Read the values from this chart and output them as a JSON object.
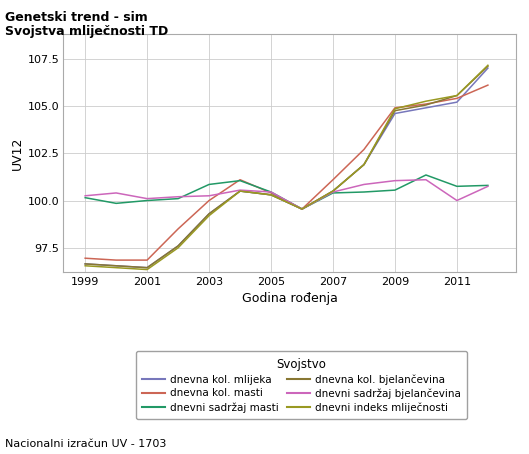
{
  "title_line1": "Genetski trend - sim",
  "title_line2": "Svojstva mliječnosti TD",
  "xlabel": "Godina rođenja",
  "ylabel": "UV12",
  "legend_title": "Svojstvo",
  "footnote": "Nacionalni izračun UV - 1703",
  "xlim": [
    1998.3,
    2012.9
  ],
  "ylim": [
    96.2,
    108.8
  ],
  "xticks": [
    1999,
    2001,
    2003,
    2005,
    2007,
    2009,
    2011
  ],
  "yticks": [
    97.5,
    100.0,
    102.5,
    105.0,
    107.5
  ],
  "years": [
    1999,
    2000,
    2001,
    2002,
    2003,
    2004,
    2005,
    2006,
    2007,
    2008,
    2009,
    2010,
    2011,
    2012
  ],
  "series": [
    {
      "label": "dnevna kol. mlijeka",
      "color": "#7777bb",
      "values": [
        96.65,
        96.55,
        96.45,
        97.6,
        99.3,
        100.5,
        100.3,
        99.55,
        100.5,
        101.9,
        104.6,
        104.9,
        105.2,
        107.0
      ]
    },
    {
      "label": "dnevna kol. masti",
      "color": "#cc6655",
      "values": [
        96.95,
        96.85,
        96.85,
        98.5,
        100.0,
        101.1,
        100.4,
        99.55,
        101.1,
        102.7,
        104.9,
        105.1,
        105.4,
        106.1
      ]
    },
    {
      "label": "dnevni sadržaj masti",
      "color": "#229966",
      "values": [
        100.15,
        99.85,
        100.0,
        100.1,
        100.85,
        101.05,
        100.45,
        99.55,
        100.4,
        100.45,
        100.55,
        101.35,
        100.75,
        100.8
      ]
    },
    {
      "label": "dnevna kol. bjelančevina",
      "color": "#887733",
      "values": [
        96.65,
        96.55,
        96.45,
        97.6,
        99.3,
        100.5,
        100.3,
        99.55,
        100.5,
        101.9,
        104.75,
        105.05,
        105.55,
        107.1
      ]
    },
    {
      "label": "dnevni sadržaj bjelančevina",
      "color": "#cc66bb",
      "values": [
        100.25,
        100.4,
        100.1,
        100.2,
        100.25,
        100.55,
        100.45,
        99.55,
        100.45,
        100.85,
        101.05,
        101.1,
        100.0,
        100.75
      ]
    },
    {
      "label": "dnevni indeks mliječnosti",
      "color": "#999922",
      "values": [
        96.55,
        96.45,
        96.35,
        97.5,
        99.2,
        100.5,
        100.3,
        99.55,
        100.5,
        101.9,
        104.85,
        105.25,
        105.55,
        107.15
      ]
    }
  ],
  "legend_order": [
    0,
    1,
    2,
    3,
    4,
    5
  ],
  "bg_color": "#ffffff",
  "plot_bg": "#ffffff",
  "grid_color": "#cccccc"
}
